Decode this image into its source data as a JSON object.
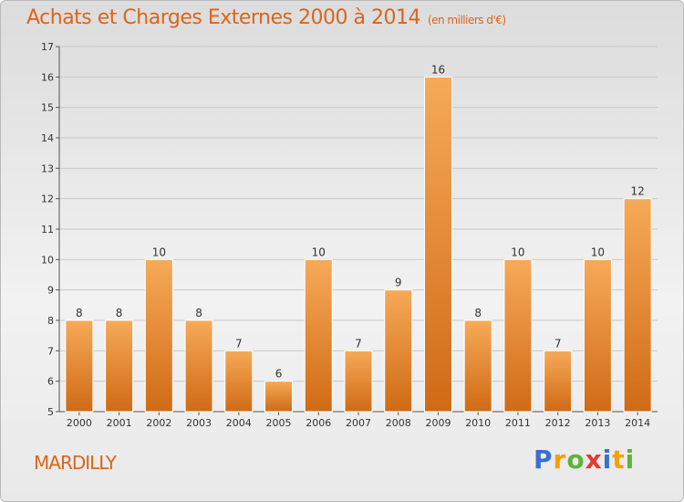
{
  "header": {
    "title": "Achats et Charges Externes 2000 à 2014",
    "unit": "(en milliers d'€)"
  },
  "footer": {
    "place": "MARDILLY",
    "logo_letters": [
      {
        "ch": "P",
        "color": "#3a6fd0"
      },
      {
        "ch": "r",
        "color": "#f2a100"
      },
      {
        "ch": "o",
        "color": "#5eb33b"
      },
      {
        "ch": "x",
        "color": "#e23b2e"
      },
      {
        "ch": "i",
        "color": "#3a6fd0"
      },
      {
        "ch": "t",
        "color": "#f2a100"
      },
      {
        "ch": "i",
        "color": "#5eb33b"
      }
    ]
  },
  "colors": {
    "title": "#d9661c",
    "bar_top": "#f6aa58",
    "bar_bottom": "#d06a15"
  },
  "chart_data": {
    "type": "bar",
    "title": "Achats et Charges Externes 2000 à 2014",
    "subtitle": "(en milliers d'€)",
    "categories": [
      "2000",
      "2001",
      "2002",
      "2003",
      "2004",
      "2005",
      "2006",
      "2007",
      "2008",
      "2009",
      "2010",
      "2011",
      "2012",
      "2013",
      "2014"
    ],
    "values": [
      8,
      8,
      10,
      8,
      7,
      6,
      10,
      7,
      9,
      16,
      8,
      10,
      7,
      10,
      12
    ],
    "ylim": [
      5,
      17
    ],
    "yticks": [
      5,
      6,
      7,
      8,
      9,
      10,
      11,
      12,
      13,
      14,
      15,
      16,
      17
    ],
    "grid": "horizontal",
    "legend": "none"
  }
}
